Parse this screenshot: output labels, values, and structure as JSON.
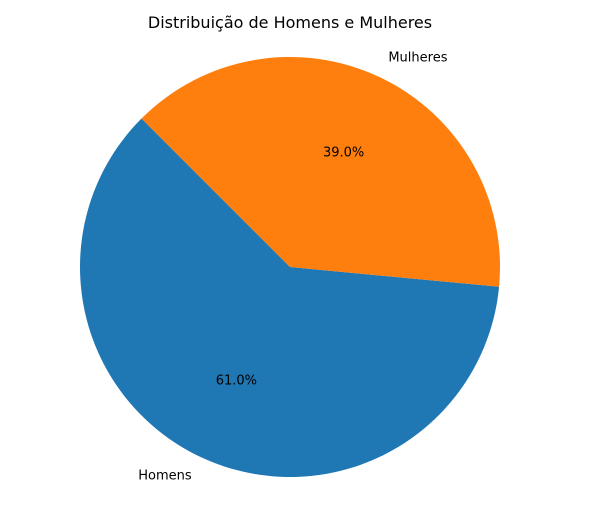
{
  "chart_data": {
    "type": "pie",
    "title": "Distribuição de Homens e Mulheres",
    "labels": [
      "Homens",
      "Mulheres"
    ],
    "values": [
      61.0,
      39.0
    ],
    "percent_labels": [
      "61.0%",
      "39.0%"
    ],
    "colors": [
      "#1f77b4",
      "#ff7f0e"
    ],
    "start_angle_deg": 135,
    "direction": "counterclockwise",
    "legend": "none"
  }
}
